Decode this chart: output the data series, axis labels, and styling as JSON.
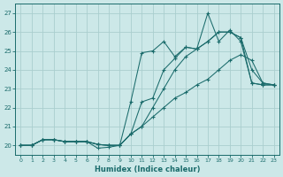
{
  "xlabel": "Humidex (Indice chaleur)",
  "xlim": [
    -0.5,
    23.5
  ],
  "ylim": [
    19.5,
    27.5
  ],
  "yticks": [
    20,
    21,
    22,
    23,
    24,
    25,
    26,
    27
  ],
  "xticks": [
    0,
    1,
    2,
    3,
    4,
    5,
    6,
    7,
    8,
    9,
    10,
    11,
    12,
    13,
    14,
    15,
    16,
    17,
    18,
    19,
    20,
    21,
    22,
    23
  ],
  "bg_color": "#cce8e8",
  "grid_color": "#aacece",
  "line_color": "#1a6b6b",
  "lines": [
    {
      "x": [
        0,
        1,
        2,
        3,
        4,
        5,
        6,
        7,
        8,
        9,
        10,
        11,
        12,
        13,
        14,
        15,
        16,
        17,
        18,
        19,
        20,
        21,
        22,
        23
      ],
      "y": [
        20.0,
        20.0,
        20.3,
        20.3,
        20.2,
        20.2,
        20.2,
        19.85,
        19.9,
        20.0,
        20.6,
        22.3,
        22.5,
        24.0,
        24.6,
        25.2,
        25.1,
        27.0,
        25.5,
        26.1,
        25.5,
        23.3,
        23.2,
        23.2
      ]
    },
    {
      "x": [
        0,
        1,
        2,
        3,
        4,
        5,
        6,
        7,
        8,
        9,
        10,
        11,
        12,
        13,
        14,
        15,
        16,
        17,
        18,
        19,
        20,
        21,
        22,
        23
      ],
      "y": [
        20.0,
        20.0,
        20.3,
        20.3,
        20.2,
        20.2,
        20.2,
        20.05,
        20.0,
        20.0,
        22.3,
        24.9,
        25.0,
        25.5,
        24.7,
        25.2,
        25.1,
        25.5,
        26.0,
        26.0,
        25.7,
        23.3,
        23.2,
        23.2
      ]
    },
    {
      "x": [
        0,
        1,
        2,
        3,
        4,
        5,
        6,
        7,
        8,
        9,
        10,
        11,
        12,
        13,
        14,
        15,
        16,
        17,
        18,
        19,
        20,
        21,
        22,
        23
      ],
      "y": [
        20.0,
        20.0,
        20.3,
        20.3,
        20.2,
        20.2,
        20.2,
        20.05,
        20.0,
        20.0,
        20.6,
        21.0,
        22.0,
        23.0,
        24.0,
        24.7,
        25.1,
        25.5,
        26.0,
        26.0,
        25.7,
        24.0,
        23.3,
        23.2
      ]
    },
    {
      "x": [
        0,
        1,
        2,
        3,
        4,
        5,
        6,
        7,
        8,
        9,
        10,
        11,
        12,
        13,
        14,
        15,
        16,
        17,
        18,
        19,
        20,
        21,
        22,
        23
      ],
      "y": [
        20.0,
        20.0,
        20.3,
        20.3,
        20.2,
        20.2,
        20.2,
        20.05,
        20.0,
        20.0,
        20.6,
        21.0,
        21.5,
        22.0,
        22.5,
        22.8,
        23.2,
        23.5,
        24.0,
        24.5,
        24.8,
        24.5,
        23.3,
        23.2
      ]
    }
  ]
}
